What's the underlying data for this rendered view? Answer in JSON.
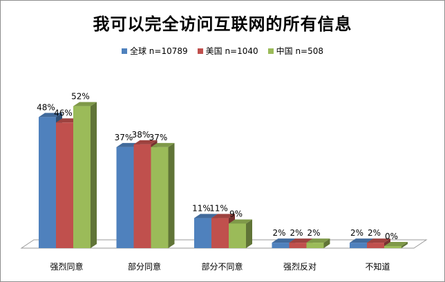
{
  "chart_data": {
    "type": "bar",
    "title": "我可以完全访问互联网的所有信息",
    "categories": [
      "强烈同意",
      "部分同意",
      "部分不同意",
      "强烈反对",
      "不知道"
    ],
    "series": [
      {
        "name": "全球 n=10789",
        "color": "#4f81bd",
        "values": [
          48,
          37,
          11,
          2,
          2
        ],
        "labels": [
          "48%",
          "37%",
          "11%",
          "2%",
          "2%"
        ]
      },
      {
        "name": "美国 n=1040",
        "color": "#c0504d",
        "values": [
          46,
          38,
          11,
          2,
          2
        ],
        "labels": [
          "46%",
          "38%",
          "11%",
          "2%",
          "2%"
        ]
      },
      {
        "name": "中国 n=508",
        "color": "#9bbb59",
        "values": [
          52,
          37,
          9,
          2,
          0
        ],
        "labels": [
          "52%",
          "37%",
          "9%",
          "2%",
          "0%"
        ]
      }
    ],
    "ylim": [
      0,
      60
    ],
    "legend_position": "top",
    "grid": false,
    "style": "3d-clustered-column"
  }
}
